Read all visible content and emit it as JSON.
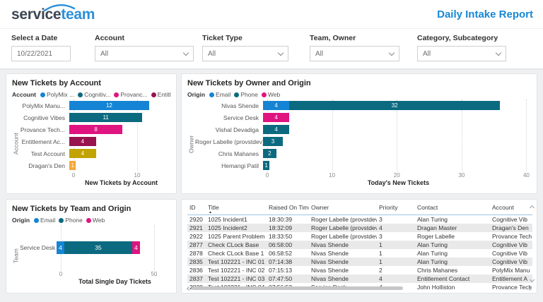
{
  "header": {
    "logo_service": "service",
    "logo_team": "team",
    "report_title": "Daily Intake Report"
  },
  "filters": [
    {
      "label": "Select a Date",
      "value": "10/22/2021",
      "type": "date"
    },
    {
      "label": "Account",
      "value": "All",
      "type": "dropdown"
    },
    {
      "label": "Ticket Type",
      "value": "All",
      "type": "dropdown"
    },
    {
      "label": "Team, Owner",
      "value": "All",
      "type": "dropdown"
    },
    {
      "label": "Category, Subcategory",
      "value": "All",
      "type": "dropdown"
    }
  ],
  "colors": {
    "email_blue": "#1584d4",
    "phone_teal": "#0b6a80",
    "web_magenta": "#df1480",
    "entitlement_maroon": "#99134f",
    "gold": "#c2a301",
    "orange": "#f6a83b",
    "accent_title": "#1788d4"
  },
  "chart_data": [
    {
      "type": "bar",
      "title": "New Tickets by Account",
      "legend_title": "Account",
      "legend": [
        {
          "label": "PolyMix ...",
          "color": "#1584d4"
        },
        {
          "label": "Cognitiv...",
          "color": "#0b6a80"
        },
        {
          "label": "Provanc...",
          "color": "#df1480"
        },
        {
          "label": "Entitlem...",
          "color": "#99134f"
        }
      ],
      "legend_overflow": "▶",
      "categories": [
        "PolyMix Manu...",
        "Cognitive Vibes",
        "Provance Tech...",
        "Entitlement Ac...",
        "Test Account",
        "Dragan's Den"
      ],
      "values": [
        12,
        11,
        8,
        4,
        4,
        1
      ],
      "bar_colors": [
        "#1584d4",
        "#0b6a80",
        "#df1480",
        "#99134f",
        "#c2a301",
        "#f6a83b"
      ],
      "xlabel": "New Tickets by Account",
      "ylabel": "Account",
      "xlim": [
        0,
        15
      ],
      "ticks": [
        0,
        10
      ],
      "grid": true,
      "legend_position": "top"
    },
    {
      "type": "stacked-bar",
      "title": "New Tickets by Owner and Origin",
      "legend_title": "Origin",
      "legend": [
        {
          "label": "Email",
          "color": "#1584d4"
        },
        {
          "label": "Phone",
          "color": "#0b6a80"
        },
        {
          "label": "Web",
          "color": "#df1480"
        }
      ],
      "categories": [
        "Nivas Shende",
        "Service Desk",
        "Vishal Devadiga",
        "Roger Labelle (provstdev)",
        "Chris Mahanes",
        "Hemangi Patil"
      ],
      "series": [
        {
          "name": "Email",
          "color": "#1584d4",
          "values": [
            4,
            0,
            0,
            0,
            0,
            0
          ]
        },
        {
          "name": "Phone",
          "color": "#0b6a80",
          "values": [
            32,
            0,
            4,
            3,
            2,
            1
          ]
        },
        {
          "name": "Web",
          "color": "#df1480",
          "values": [
            0,
            4,
            0,
            0,
            0,
            0
          ]
        }
      ],
      "xlabel": "Today's New Tickets",
      "ylabel": "Owner",
      "xlim": [
        0,
        40.5
      ],
      "ticks": [
        0,
        10,
        20,
        30,
        40
      ],
      "grid": true,
      "legend_position": "top"
    },
    {
      "type": "stacked-bar",
      "title": "New Tickets by Team and Origin",
      "legend_title": "Origin",
      "legend": [
        {
          "label": "Email",
          "color": "#1584d4"
        },
        {
          "label": "Phone",
          "color": "#0b6a80"
        },
        {
          "label": "Web",
          "color": "#df1480"
        }
      ],
      "categories": [
        "Service Desk"
      ],
      "series": [
        {
          "name": "Email",
          "color": "#1584d4",
          "values": [
            4
          ]
        },
        {
          "name": "Phone",
          "color": "#0b6a80",
          "values": [
            35
          ]
        },
        {
          "name": "Web",
          "color": "#df1480",
          "values": [
            4
          ]
        }
      ],
      "xlabel": "Total Single Day Tickets",
      "ylabel": "Team",
      "xlim": [
        0,
        58
      ],
      "ticks": [
        0,
        50
      ],
      "grid": true,
      "legend_position": "top"
    }
  ],
  "table": {
    "columns": [
      {
        "label": "ID"
      },
      {
        "label": "Title",
        "sort": "asc"
      },
      {
        "label": "Raised On Time"
      },
      {
        "label": "Owner"
      },
      {
        "label": "Priority"
      },
      {
        "label": "Contact"
      },
      {
        "label": "Account"
      }
    ],
    "rows": [
      [
        "2920",
        "1025 Incident1",
        "18:30:39",
        "Roger Labelle (provstdev)",
        "3",
        "Alan Turing",
        "Cognitive Vib"
      ],
      [
        "2921",
        "1025 Incident2",
        "18:32:09",
        "Roger Labelle (provstdev)",
        "4",
        "Dragan Master",
        "Dragan's Den"
      ],
      [
        "2922",
        "1025 Parent Problem",
        "18:33:50",
        "Roger Labelle (provstdev)",
        "3",
        "Roger Labelle",
        "Provance Tech"
      ],
      [
        "2877",
        "Check CLock Base",
        "06:58:00",
        "Nivas Shende",
        "1",
        "Alan Turing",
        "Cognitive Vib"
      ],
      [
        "2878",
        "Check CLock Base 1",
        "06:58:52",
        "Nivas Shende",
        "1",
        "Alan Turing",
        "Cognitive Vib"
      ],
      [
        "2835",
        "Test 102221 - INC 01",
        "07:14:38",
        "Nivas Shende",
        "1",
        "Alan Turing",
        "Cognitive Vib"
      ],
      [
        "2836",
        "Test 102221 - INC 02",
        "07:15:13",
        "Nivas Shende",
        "2",
        "Chris Mahanes",
        "PolyMix Manu"
      ],
      [
        "2837",
        "Test 102221 - INC 03",
        "07:47:50",
        "Nivas Shende",
        "4",
        "Entitlement Contact",
        "Entitlement A"
      ],
      [
        "2838",
        "Test 102221 - INC 04",
        "07:56:53",
        "Service Desk",
        "4",
        "John Holliston",
        "Provance Tech"
      ]
    ]
  }
}
